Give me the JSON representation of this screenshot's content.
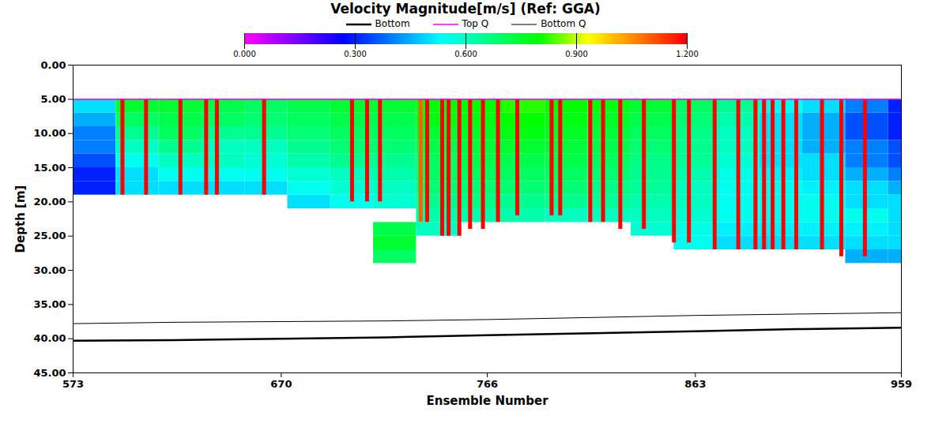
{
  "chart_data": {
    "type": "heatmap",
    "title": "Velocity Magnitude[m/s] (Ref: GGA)",
    "x_label": "Ensemble Number",
    "y_label": "Depth [m]",
    "xlim": [
      573,
      959
    ],
    "xticks": [
      573,
      670,
      766,
      863,
      959
    ],
    "ylim": [
      0,
      45
    ],
    "yticks": [
      {
        "value": 0,
        "label": "0.00"
      },
      {
        "value": 5,
        "label": "5.00"
      },
      {
        "value": 10,
        "label": "10.00"
      },
      {
        "value": 15,
        "label": "15.00"
      },
      {
        "value": 20,
        "label": "20.00"
      },
      {
        "value": 25,
        "label": "25.00"
      },
      {
        "value": 30,
        "label": "30.00"
      },
      {
        "value": 35,
        "label": "35.00"
      },
      {
        "value": 40,
        "label": "40.00"
      },
      {
        "value": 45,
        "label": "45.00"
      }
    ],
    "colorbar": {
      "range": [
        0,
        1.2
      ],
      "ticks": [
        {
          "value": 0,
          "label": "0.000"
        },
        {
          "value": 0.3,
          "label": "0.300"
        },
        {
          "value": 0.6,
          "label": "0.600"
        },
        {
          "value": 0.9,
          "label": "0.900"
        },
        {
          "value": 1.2,
          "label": "1.200"
        }
      ]
    },
    "cells": {
      "x_edges": [
        573,
        593,
        613,
        633,
        653,
        673,
        693,
        713,
        733,
        753,
        773,
        793,
        813,
        833,
        853,
        873,
        893,
        913,
        933,
        953,
        959
      ],
      "depth_edges": [
        5,
        7,
        9,
        11,
        13,
        15,
        17,
        19,
        21,
        23,
        25,
        27,
        29
      ],
      "values": [
        [
          0.5,
          0.45,
          0.4,
          0.4,
          0.35,
          0.3,
          0.3,
          null,
          null,
          null,
          null,
          null
        ],
        [
          0.75,
          0.7,
          0.65,
          0.6,
          0.55,
          0.5,
          0.5,
          null,
          null,
          null,
          null,
          null
        ],
        [
          0.75,
          0.72,
          0.7,
          0.65,
          0.6,
          0.55,
          0.5,
          null,
          null,
          null,
          null,
          null
        ],
        [
          0.72,
          0.7,
          0.65,
          0.6,
          0.6,
          0.55,
          0.5,
          null,
          null,
          null,
          null,
          null
        ],
        [
          0.7,
          0.68,
          0.65,
          0.6,
          0.58,
          0.55,
          0.5,
          null,
          null,
          null,
          null,
          null
        ],
        [
          0.72,
          0.7,
          0.68,
          0.65,
          0.62,
          0.58,
          0.55,
          0.5,
          null,
          null,
          null,
          null
        ],
        [
          0.75,
          0.72,
          0.7,
          0.68,
          0.65,
          0.6,
          0.58,
          0.55,
          null,
          null,
          null,
          null
        ],
        [
          0.75,
          0.72,
          0.7,
          0.68,
          0.65,
          0.62,
          0.6,
          0.58,
          null,
          0.72,
          0.75,
          0.7
        ],
        [
          0.8,
          0.78,
          0.75,
          0.72,
          0.7,
          0.7,
          0.68,
          0.65,
          0.62,
          0.6,
          null,
          null
        ],
        [
          0.8,
          0.78,
          0.76,
          0.74,
          0.72,
          0.7,
          0.68,
          0.66,
          0.62,
          null,
          null,
          null
        ],
        [
          0.82,
          0.8,
          0.78,
          0.75,
          0.72,
          0.7,
          0.68,
          0.65,
          0.62,
          null,
          null,
          null
        ],
        [
          0.8,
          0.78,
          0.76,
          0.74,
          0.72,
          0.7,
          0.68,
          0.65,
          0.6,
          null,
          null,
          null
        ],
        [
          0.78,
          0.76,
          0.74,
          0.72,
          0.7,
          0.68,
          0.66,
          0.64,
          0.6,
          null,
          null,
          null
        ],
        [
          0.75,
          0.72,
          0.7,
          0.68,
          0.66,
          0.65,
          0.64,
          0.62,
          0.6,
          0.58,
          null,
          null
        ],
        [
          0.7,
          0.68,
          0.66,
          0.65,
          0.64,
          0.62,
          0.6,
          0.6,
          0.58,
          0.56,
          0.55,
          null
        ],
        [
          0.65,
          0.62,
          0.6,
          0.6,
          0.58,
          0.56,
          0.55,
          0.55,
          0.55,
          0.52,
          0.5,
          null
        ],
        [
          0.55,
          0.5,
          0.5,
          0.5,
          0.5,
          0.52,
          0.55,
          0.55,
          0.55,
          0.52,
          0.5,
          null
        ],
        [
          0.5,
          0.45,
          0.45,
          0.45,
          0.5,
          0.5,
          0.52,
          0.55,
          0.55,
          0.52,
          0.5,
          null
        ],
        [
          0.4,
          0.35,
          0.35,
          0.4,
          0.4,
          0.45,
          0.5,
          0.5,
          0.55,
          0.52,
          0.5,
          0.45
        ],
        [
          0.3,
          0.3,
          0.3,
          0.35,
          0.35,
          0.4,
          0.45,
          0.5,
          0.5,
          0.5,
          0.5,
          0.45
        ]
      ]
    },
    "stripes": {
      "ensembles": [
        596,
        607,
        623,
        635,
        640,
        662,
        703,
        710,
        716,
        735,
        738,
        745,
        748,
        753,
        758,
        764,
        771,
        780,
        796,
        800,
        814,
        820,
        828,
        839,
        853,
        860,
        872,
        883,
        891,
        895,
        899,
        904,
        910,
        922,
        931,
        942
      ],
      "depth_bottom": [
        19,
        19,
        19,
        19,
        19,
        19,
        20,
        20,
        20,
        23,
        23,
        25,
        25,
        25,
        24,
        24,
        23,
        22,
        22,
        22,
        23,
        23,
        24,
        24,
        26,
        26,
        27,
        27,
        27,
        27,
        27,
        27,
        27,
        27,
        28,
        28
      ],
      "values": [
        1.2,
        1.2,
        1.2,
        1.2,
        1.2,
        1.2,
        1.2,
        1.2,
        1.2,
        1.1,
        1.2,
        1.2,
        1.2,
        1.2,
        1.2,
        1.2,
        1.2,
        1.2,
        1.2,
        1.2,
        1.2,
        1.2,
        1.2,
        1.2,
        1.2,
        1.2,
        1.2,
        1.2,
        1.2,
        1.2,
        1.2,
        1.2,
        1.2,
        1.2,
        1.2,
        1.2
      ]
    },
    "x": [
      573,
      620,
      670,
      720,
      766,
      815,
      863,
      910,
      959
    ],
    "series": [
      {
        "name": "Bottom",
        "color": "#000000",
        "line_style": "thick",
        "values": [
          40.3,
          40.2,
          40.0,
          39.8,
          39.5,
          39.2,
          38.9,
          38.6,
          38.4
        ]
      },
      {
        "name": "Top Q",
        "color": "#ff00ff",
        "line_style": "solid",
        "values": [
          5,
          5,
          5,
          5,
          5,
          5,
          5,
          5,
          5
        ]
      },
      {
        "name": "Bottom Q",
        "color": "#000000",
        "line_style": "thin",
        "values": [
          37.8,
          37.6,
          37.5,
          37.4,
          37.2,
          36.9,
          36.6,
          36.4,
          36.2
        ]
      }
    ],
    "legend": "top"
  }
}
